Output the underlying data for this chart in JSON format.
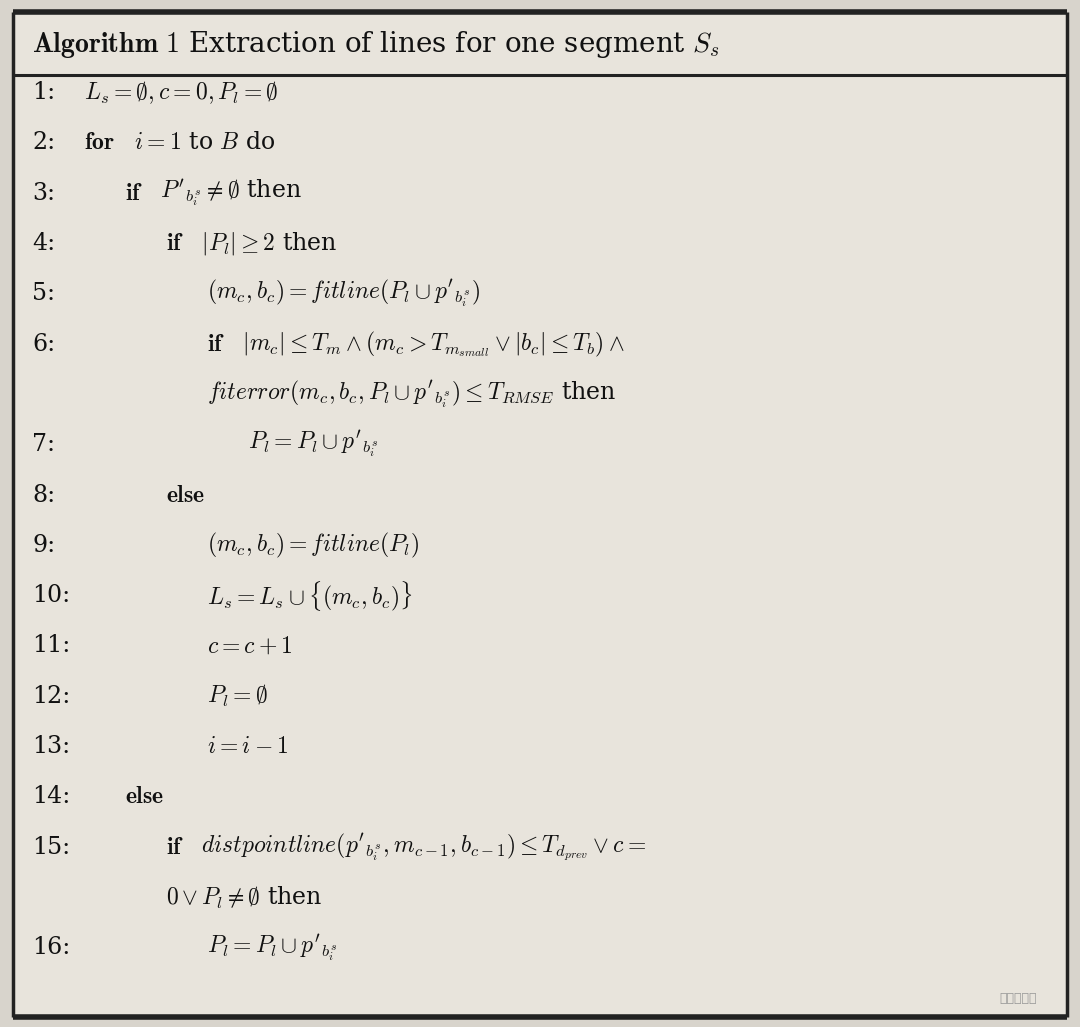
{
  "bg_color": "#d8d4cc",
  "box_color": "#e8e4dc",
  "border_color": "#222222",
  "text_color": "#111111",
  "title_bold": "Algorithm 1",
  "title_rest": " Extraction of lines for one segment $S_s$",
  "lines": [
    {
      "num": "1:",
      "indent": 0,
      "bold": "",
      "math": "$L_s = \\emptyset, c = 0, P_l = \\emptyset$"
    },
    {
      "num": "2:",
      "indent": 0,
      "bold": "for",
      "math": " $i = 1$ to $B$ do"
    },
    {
      "num": "3:",
      "indent": 1,
      "bold": "if",
      "math": " $P'_{b^s_i} \\neq \\emptyset$ then"
    },
    {
      "num": "4:",
      "indent": 2,
      "bold": "if",
      "math": " $|P_l| \\geq 2$ then"
    },
    {
      "num": "5:",
      "indent": 3,
      "bold": "",
      "math": "$(m_c, b_c) = fitline(P_l \\cup p'_{b^s_i})$"
    },
    {
      "num": "6:",
      "indent": 3,
      "bold": "if",
      "math": " $|m_c| \\leq T_m \\wedge (m_c > T_{m_{small}} \\vee |b_c| \\leq T_b) \\wedge$"
    },
    {
      "num": "",
      "indent": 3,
      "bold": "",
      "math": "$fiterror(m_c, b_c, P_l \\cup p'_{b^s_i}) \\leq T_{RMSE}$ then"
    },
    {
      "num": "7:",
      "indent": 4,
      "bold": "",
      "math": "$P_l = P_l \\cup p'_{b^s_i}$"
    },
    {
      "num": "8:",
      "indent": 2,
      "bold": "else",
      "math": ""
    },
    {
      "num": "9:",
      "indent": 3,
      "bold": "",
      "math": "$(m_c, b_c) = fitline(P_l)$"
    },
    {
      "num": "10:",
      "indent": 3,
      "bold": "",
      "math": "$L_s = L_s \\cup \\{(m_c, b_c)\\}$"
    },
    {
      "num": "11:",
      "indent": 3,
      "bold": "",
      "math": "$c = c + 1$"
    },
    {
      "num": "12:",
      "indent": 3,
      "bold": "",
      "math": "$P_l = \\emptyset$"
    },
    {
      "num": "13:",
      "indent": 3,
      "bold": "",
      "math": "$i = i - 1$"
    },
    {
      "num": "14:",
      "indent": 1,
      "bold": "else",
      "math": ""
    },
    {
      "num": "15:",
      "indent": 2,
      "bold": "if",
      "math": " $distpointline(p'_{b^s_i}, m_{c-1}, b_{c-1}) \\leq T_{d_{prev}} \\vee c =$"
    },
    {
      "num": "",
      "indent": 2,
      "bold": "",
      "math": "$0 \\vee P_l \\neq \\emptyset$ then"
    },
    {
      "num": "16:",
      "indent": 3,
      "bold": "",
      "math": "$P_l = P_l \\cup p'_{b^s_i}$"
    }
  ],
  "figsize": [
    10.8,
    10.27
  ],
  "dpi": 100
}
